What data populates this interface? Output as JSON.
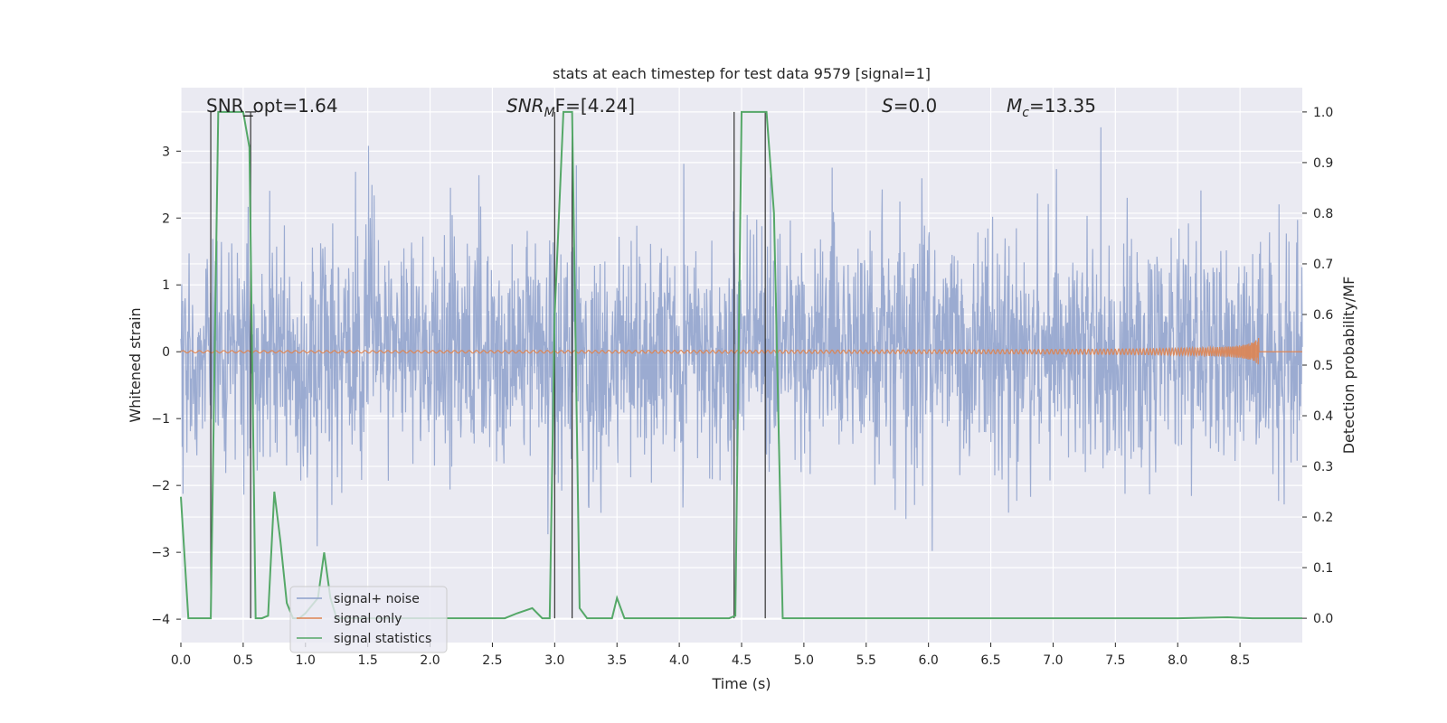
{
  "chart_data": {
    "type": "line",
    "title": "stats at each timestep for test data 9579 [signal=1]",
    "xlabel": "Time (s)",
    "ylabel": "Whitened strain",
    "y2label": "Detection probability/MF",
    "xlim": [
      0.0,
      9.0
    ],
    "ylim": [
      -4.35,
      3.95
    ],
    "y2lim": [
      -0.048,
      1.048
    ],
    "x_ticks": [
      0.0,
      0.5,
      1.0,
      1.5,
      2.0,
      2.5,
      3.0,
      3.5,
      4.0,
      4.5,
      5.0,
      5.5,
      6.0,
      6.5,
      7.0,
      7.5,
      8.0,
      8.5
    ],
    "x_tick_labels": [
      "0.0",
      "0.5",
      "1.0",
      "1.5",
      "2.0",
      "2.5",
      "3.0",
      "3.5",
      "4.0",
      "4.5",
      "5.0",
      "5.5",
      "6.0",
      "6.5",
      "7.0",
      "7.5",
      "8.0",
      "8.5"
    ],
    "y_ticks": [
      3,
      2,
      1,
      0,
      -1,
      -2,
      -3,
      -4
    ],
    "y_tick_labels": [
      "3",
      "2",
      "1",
      "0",
      "−1",
      "−2",
      "−3",
      "−4"
    ],
    "y2_ticks": [
      1.0,
      0.9,
      0.8,
      0.7,
      0.6,
      0.5,
      0.4,
      0.3,
      0.2,
      0.1,
      0.0
    ],
    "y2_tick_labels": [
      "1.0",
      "0.9",
      "0.8",
      "0.7",
      "0.6",
      "0.5",
      "0.4",
      "0.3",
      "0.2",
      "0.1",
      "0.0"
    ],
    "annotations": {
      "snr_opt": "SNR_opt=1.64",
      "snr_mf_sym": "SNR",
      "snr_mf_sub": "M",
      "snr_mf_rest": "F=[4.24]",
      "s_sym": "S",
      "s_rest": "=0.0",
      "mc_sym": "M",
      "mc_sub": "c",
      "mc_rest": "=13.35"
    },
    "legend": {
      "placement": "lower-left",
      "entries": [
        "signal+ noise",
        "signal only",
        "signal statistics"
      ]
    },
    "colors": {
      "noise": "#8da0cb",
      "signal": "#dd8452",
      "stats": "#55a868",
      "vline": "#333333",
      "axes_bg": "#eaeaf2",
      "grid": "#ffffff"
    },
    "series": [
      {
        "name": "signal statistics",
        "axis": "right",
        "x": [
          0.0,
          0.06,
          0.12,
          0.24,
          0.3,
          0.36,
          0.5,
          0.55,
          0.6,
          0.65,
          0.7,
          0.75,
          0.8,
          0.85,
          0.9,
          0.95,
          1.0,
          1.1,
          1.15,
          1.2,
          1.25,
          1.3,
          2.0,
          2.6,
          2.7,
          2.82,
          2.9,
          2.96,
          3.0,
          3.07,
          3.14,
          3.2,
          3.26,
          3.46,
          3.5,
          3.56,
          4.0,
          4.4,
          4.45,
          4.5,
          4.6,
          4.7,
          4.76,
          4.83,
          5.0,
          6.0,
          7.0,
          8.0,
          8.4,
          8.6,
          9.0
        ],
        "values": [
          0.24,
          0.0,
          0.0,
          0.0,
          1.0,
          1.0,
          1.0,
          0.93,
          0.0,
          0.0,
          0.005,
          0.25,
          0.15,
          0.03,
          0.0,
          0.0,
          0.01,
          0.04,
          0.13,
          0.04,
          0.0,
          0.0,
          0.0,
          0.0,
          0.01,
          0.02,
          0.0,
          0.0,
          0.6,
          1.0,
          1.0,
          0.02,
          0.0,
          0.0,
          0.04,
          0.0,
          0.0,
          0.0,
          0.005,
          1.0,
          1.0,
          1.0,
          0.8,
          0.0,
          0.0,
          0.0,
          0.0,
          0.0,
          0.002,
          0.0,
          0.0
        ]
      },
      {
        "name": "signal only",
        "axis": "left",
        "description_values": {
          "t_merger": 8.65,
          "peak_amplitude": 0.25
        }
      },
      {
        "name": "signal+ noise",
        "axis": "left",
        "description_values": {
          "std": 0.62,
          "max": 3.6,
          "min": -3.4
        }
      }
    ],
    "vlines": [
      {
        "x": 0.24,
        "y2_from": 0.0,
        "y2_to": 1.0
      },
      {
        "x": 0.56,
        "y2_from": 0.0,
        "y2_to": 1.0
      },
      {
        "x": 3.0,
        "y2_from": 0.0,
        "y2_to": 1.0
      },
      {
        "x": 3.14,
        "y2_from": 0.0,
        "y2_to": 1.0
      },
      {
        "x": 4.44,
        "y2_from": 0.0,
        "y2_to": 1.0
      },
      {
        "x": 4.69,
        "y2_from": 0.0,
        "y2_to": 1.0
      }
    ]
  }
}
